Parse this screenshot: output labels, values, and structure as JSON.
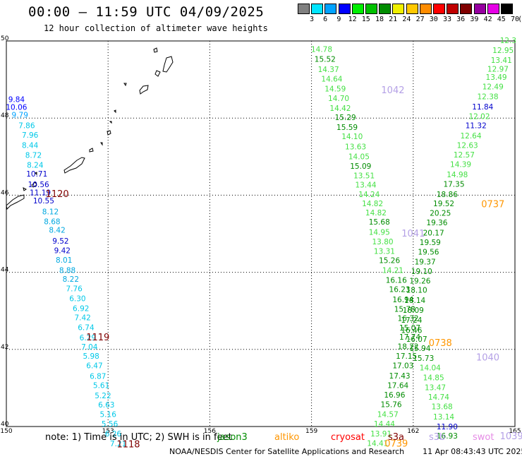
{
  "header": {
    "title": "00:00 – 11:59 UTC 04/09/2025",
    "subtitle": "12 hour collection of altimeter wave heights"
  },
  "color_scale": {
    "unit": "(ft)",
    "bins": [
      {
        "label": "3",
        "color": "#808080"
      },
      {
        "label": "6",
        "color": "#00e5ff"
      },
      {
        "label": "9",
        "color": "#00a2ff"
      },
      {
        "label": "12",
        "color": "#0000ff"
      },
      {
        "label": "15",
        "color": "#00ee00"
      },
      {
        "label": "18",
        "color": "#00c000"
      },
      {
        "label": "21",
        "color": "#008c00"
      },
      {
        "label": "24",
        "color": "#f0f000"
      },
      {
        "label": "27",
        "color": "#ffc800"
      },
      {
        "label": "30",
        "color": "#ff8c00"
      },
      {
        "label": "33",
        "color": "#ff0000"
      },
      {
        "label": "36",
        "color": "#c00000"
      },
      {
        "label": "39",
        "color": "#800000"
      },
      {
        "label": "42",
        "color": "#9600a0"
      },
      {
        "label": "45",
        "color": "#e600e6"
      },
      {
        "label": "70",
        "color": "#000000"
      }
    ]
  },
  "map": {
    "lon_ticks": [
      "150",
      "153",
      "156",
      "159",
      "162",
      "165"
    ],
    "lat_ticks": [
      "50",
      "48",
      "46",
      "44",
      "42",
      "40"
    ]
  },
  "tracks": [
    {
      "color": "#0000ff",
      "points": [
        {
          "lon": 150.3,
          "lat": 48.49,
          "v": "9.84"
        },
        {
          "lon": 150.3,
          "lat": 48.29,
          "v": "10.06"
        }
      ]
    },
    {
      "color": "#00a2ff",
      "points": [
        {
          "lon": 150.4,
          "lat": 48.09,
          "v": "9.79"
        }
      ]
    },
    {
      "color": "#00c8e8",
      "points": [
        {
          "lon": 150.6,
          "lat": 47.81,
          "v": "7.86"
        },
        {
          "lon": 150.7,
          "lat": 47.56,
          "v": "7.96"
        },
        {
          "lon": 150.7,
          "lat": 47.3,
          "v": "8.44"
        },
        {
          "lon": 150.8,
          "lat": 47.04,
          "v": "8.72"
        },
        {
          "lon": 150.85,
          "lat": 46.79,
          "v": "8.24"
        }
      ]
    },
    {
      "color": "#0000cc",
      "points": [
        {
          "lon": 150.9,
          "lat": 46.56,
          "v": "10.71"
        },
        {
          "lon": 150.95,
          "lat": 46.28,
          "v": "10.56"
        },
        {
          "lon": 151.0,
          "lat": 46.07,
          "v": "11.19"
        },
        {
          "lon": 151.1,
          "lat": 45.86,
          "v": "10.55"
        }
      ]
    },
    {
      "color": "#00a8e0",
      "points": [
        {
          "lon": 151.3,
          "lat": 45.58,
          "v": "8.12"
        },
        {
          "lon": 151.35,
          "lat": 45.32,
          "v": "8.68"
        },
        {
          "lon": 151.5,
          "lat": 45.1,
          "v": "8.42"
        }
      ]
    },
    {
      "color": "#0000cc",
      "points": [
        {
          "lon": 151.6,
          "lat": 44.82,
          "v": "9.52"
        },
        {
          "lon": 151.65,
          "lat": 44.57,
          "v": "9.42"
        }
      ]
    },
    {
      "color": "#00a8e0",
      "points": [
        {
          "lon": 151.7,
          "lat": 44.32,
          "v": "8.01"
        },
        {
          "lon": 151.8,
          "lat": 44.06,
          "v": "8.88"
        },
        {
          "lon": 151.9,
          "lat": 43.83,
          "v": "8.22"
        }
      ]
    },
    {
      "color": "#00c8e8",
      "points": [
        {
          "lon": 152.0,
          "lat": 43.58,
          "v": "7.76"
        },
        {
          "lon": 152.1,
          "lat": 43.32,
          "v": "6.30"
        },
        {
          "lon": 152.2,
          "lat": 43.07,
          "v": "6.92"
        },
        {
          "lon": 152.25,
          "lat": 42.83,
          "v": "7.42"
        },
        {
          "lon": 152.35,
          "lat": 42.57,
          "v": "6.74"
        },
        {
          "lon": 152.4,
          "lat": 42.31,
          "v": "6.29"
        },
        {
          "lon": 152.45,
          "lat": 42.07,
          "v": "7.04"
        },
        {
          "lon": 152.5,
          "lat": 41.83,
          "v": "5.98"
        },
        {
          "lon": 152.6,
          "lat": 41.58,
          "v": "6.47"
        },
        {
          "lon": 152.7,
          "lat": 41.31,
          "v": "6.87"
        },
        {
          "lon": 152.8,
          "lat": 41.07,
          "v": "5.61"
        },
        {
          "lon": 152.85,
          "lat": 40.81,
          "v": "5.22"
        },
        {
          "lon": 152.95,
          "lat": 40.57,
          "v": "6.63"
        },
        {
          "lon": 153.0,
          "lat": 40.32,
          "v": "5.16"
        },
        {
          "lon": 153.05,
          "lat": 40.07,
          "v": "5.56"
        },
        {
          "lon": 153.15,
          "lat": 39.82,
          "v": "6.26"
        },
        {
          "lon": 153.3,
          "lat": 39.56,
          "v": "7.21"
        }
      ]
    },
    {
      "color": "#44e044",
      "points": [
        {
          "lon": 159.3,
          "lat": 49.79,
          "v": "14.78"
        }
      ]
    },
    {
      "color": "#008c00",
      "points": [
        {
          "lon": 159.4,
          "lat": 49.53,
          "v": "15.52"
        }
      ]
    },
    {
      "color": "#44e044",
      "points": [
        {
          "lon": 159.5,
          "lat": 49.27,
          "v": "14.37"
        },
        {
          "lon": 159.6,
          "lat": 49.02,
          "v": "14.64"
        },
        {
          "lon": 159.7,
          "lat": 48.76,
          "v": "14.59"
        },
        {
          "lon": 159.8,
          "lat": 48.52,
          "v": "14.70"
        },
        {
          "lon": 159.85,
          "lat": 48.26,
          "v": "14.42"
        }
      ]
    },
    {
      "color": "#008c00",
      "points": [
        {
          "lon": 160.0,
          "lat": 48.02,
          "v": "15.29"
        },
        {
          "lon": 160.05,
          "lat": 47.77,
          "v": "15.59"
        }
      ]
    },
    {
      "color": "#44e044",
      "points": [
        {
          "lon": 160.2,
          "lat": 47.53,
          "v": "14.10"
        },
        {
          "lon": 160.3,
          "lat": 47.26,
          "v": "13.63"
        },
        {
          "lon": 160.4,
          "lat": 47.01,
          "v": "14.05"
        }
      ]
    },
    {
      "color": "#008c00",
      "points": [
        {
          "lon": 160.45,
          "lat": 46.76,
          "v": "15.09"
        }
      ]
    },
    {
      "color": "#44e044",
      "points": [
        {
          "lon": 160.55,
          "lat": 46.51,
          "v": "13.51"
        },
        {
          "lon": 160.6,
          "lat": 46.27,
          "v": "13.44"
        },
        {
          "lon": 160.7,
          "lat": 46.03,
          "v": "14.24"
        },
        {
          "lon": 160.8,
          "lat": 45.79,
          "v": "14.82"
        },
        {
          "lon": 160.9,
          "lat": 45.55,
          "v": "14.82"
        }
      ]
    },
    {
      "color": "#008c00",
      "points": [
        {
          "lon": 161.0,
          "lat": 45.31,
          "v": "15.68"
        }
      ]
    },
    {
      "color": "#44e044",
      "points": [
        {
          "lon": 161.0,
          "lat": 45.05,
          "v": "14.95"
        },
        {
          "lon": 161.1,
          "lat": 44.8,
          "v": "13.80"
        },
        {
          "lon": 161.15,
          "lat": 44.55,
          "v": "13.31"
        }
      ]
    },
    {
      "color": "#008c00",
      "points": [
        {
          "lon": 161.3,
          "lat": 44.31,
          "v": "15.26"
        }
      ]
    },
    {
      "color": "#44e044",
      "points": [
        {
          "lon": 161.4,
          "lat": 44.06,
          "v": "14.21"
        }
      ]
    },
    {
      "color": "#008c00",
      "points": [
        {
          "lon": 161.5,
          "lat": 43.8,
          "v": "16.16"
        },
        {
          "lon": 161.6,
          "lat": 43.56,
          "v": "16.23"
        },
        {
          "lon": 161.7,
          "lat": 43.3,
          "v": "16.94"
        },
        {
          "lon": 161.75,
          "lat": 43.05,
          "v": "15.78"
        },
        {
          "lon": 161.85,
          "lat": 42.81,
          "v": "16.32"
        },
        {
          "lon": 161.9,
          "lat": 42.56,
          "v": "15.07"
        },
        {
          "lon": 161.9,
          "lat": 42.33,
          "v": "17.74"
        },
        {
          "lon": 161.85,
          "lat": 42.08,
          "v": "18.22"
        },
        {
          "lon": 161.8,
          "lat": 41.83,
          "v": "17.15"
        },
        {
          "lon": 161.7,
          "lat": 41.58,
          "v": "17.03"
        },
        {
          "lon": 161.6,
          "lat": 41.32,
          "v": "17.43"
        },
        {
          "lon": 161.55,
          "lat": 41.07,
          "v": "17.64"
        },
        {
          "lon": 161.45,
          "lat": 40.82,
          "v": "16.96"
        },
        {
          "lon": 161.35,
          "lat": 40.58,
          "v": "15.76"
        }
      ]
    },
    {
      "color": "#44e044",
      "points": [
        {
          "lon": 161.25,
          "lat": 40.32,
          "v": "14.57"
        },
        {
          "lon": 161.15,
          "lat": 40.07,
          "v": "14.44"
        },
        {
          "lon": 161.05,
          "lat": 39.82,
          "v": "13.91"
        },
        {
          "lon": 160.95,
          "lat": 39.57,
          "v": "14.41"
        }
      ]
    },
    {
      "color": "#44e044",
      "points": [
        {
          "lon": 164.8,
          "lat": 50.02,
          "v": "12.3"
        },
        {
          "lon": 164.65,
          "lat": 49.76,
          "v": "12.95"
        },
        {
          "lon": 164.6,
          "lat": 49.51,
          "v": "13.41"
        },
        {
          "lon": 164.5,
          "lat": 49.28,
          "v": "12.97"
        },
        {
          "lon": 164.45,
          "lat": 49.07,
          "v": "13.49"
        },
        {
          "lon": 164.35,
          "lat": 48.82,
          "v": "12.49"
        },
        {
          "lon": 164.2,
          "lat": 48.56,
          "v": "12.38"
        }
      ]
    },
    {
      "color": "#0000cc",
      "points": [
        {
          "lon": 164.05,
          "lat": 48.3,
          "v": "11.84"
        }
      ]
    },
    {
      "color": "#44e044",
      "points": [
        {
          "lon": 163.95,
          "lat": 48.05,
          "v": "12.02"
        }
      ]
    },
    {
      "color": "#0000cc",
      "points": [
        {
          "lon": 163.85,
          "lat": 47.81,
          "v": "11.32"
        }
      ]
    },
    {
      "color": "#44e044",
      "points": [
        {
          "lon": 163.7,
          "lat": 47.55,
          "v": "12.64"
        },
        {
          "lon": 163.6,
          "lat": 47.3,
          "v": "12.63"
        },
        {
          "lon": 163.5,
          "lat": 47.05,
          "v": "12.57"
        },
        {
          "lon": 163.4,
          "lat": 46.8,
          "v": "14.39"
        },
        {
          "lon": 163.3,
          "lat": 46.54,
          "v": "14.98"
        }
      ]
    },
    {
      "color": "#008c00",
      "points": [
        {
          "lon": 163.2,
          "lat": 46.29,
          "v": "17.35"
        },
        {
          "lon": 163.0,
          "lat": 46.03,
          "v": "18.86"
        },
        {
          "lon": 162.9,
          "lat": 45.79,
          "v": "19.52"
        },
        {
          "lon": 162.8,
          "lat": 45.54,
          "v": "20.25"
        },
        {
          "lon": 162.7,
          "lat": 45.29,
          "v": "19.36"
        },
        {
          "lon": 162.6,
          "lat": 45.03,
          "v": "20.17"
        },
        {
          "lon": 162.5,
          "lat": 44.78,
          "v": "19.59"
        },
        {
          "lon": 162.45,
          "lat": 44.53,
          "v": "19.56"
        },
        {
          "lon": 162.35,
          "lat": 44.28,
          "v": "19.37"
        },
        {
          "lon": 162.25,
          "lat": 44.03,
          "v": "19.10"
        },
        {
          "lon": 162.2,
          "lat": 43.78,
          "v": "19.26"
        },
        {
          "lon": 162.1,
          "lat": 43.54,
          "v": "18.10"
        },
        {
          "lon": 162.05,
          "lat": 43.28,
          "v": "18.14"
        },
        {
          "lon": 162.0,
          "lat": 43.02,
          "v": "18.09"
        },
        {
          "lon": 161.95,
          "lat": 42.77,
          "v": "17.24"
        },
        {
          "lon": 161.95,
          "lat": 42.5,
          "v": "16.46"
        },
        {
          "lon": 162.1,
          "lat": 42.27,
          "v": "16.07"
        },
        {
          "lon": 162.2,
          "lat": 42.03,
          "v": "15.94"
        },
        {
          "lon": 162.3,
          "lat": 41.78,
          "v": "15.73"
        }
      ]
    },
    {
      "color": "#44e044",
      "points": [
        {
          "lon": 162.5,
          "lat": 41.53,
          "v": "14.04"
        },
        {
          "lon": 162.6,
          "lat": 41.27,
          "v": "14.85"
        },
        {
          "lon": 162.65,
          "lat": 41.02,
          "v": "13.47"
        },
        {
          "lon": 162.75,
          "lat": 40.77,
          "v": "14.74"
        },
        {
          "lon": 162.85,
          "lat": 40.52,
          "v": "13.68"
        },
        {
          "lon": 162.9,
          "lat": 40.26,
          "v": "13.14"
        }
      ]
    },
    {
      "color": "#0000cc",
      "points": [
        {
          "lon": 163.0,
          "lat": 40.0,
          "v": "11.90"
        }
      ]
    },
    {
      "color": "#008c00",
      "points": [
        {
          "lon": 163.0,
          "lat": 39.76,
          "v": "16.93"
        }
      ]
    }
  ],
  "pass_labels": [
    {
      "text": "1120",
      "lon": 151.5,
      "lat": 46.04,
      "color": "#800000"
    },
    {
      "text": "1119",
      "lon": 152.7,
      "lat": 42.33,
      "color": "#800000"
    },
    {
      "text": "1118",
      "lon": 153.6,
      "lat": 39.55,
      "color": "#800000"
    },
    {
      "text": "1042",
      "lon": 161.4,
      "lat": 48.74,
      "color": "#b4a0e6"
    },
    {
      "text": "1041",
      "lon": 162.0,
      "lat": 45.02,
      "color": "#b4a0e6"
    },
    {
      "text": "1040",
      "lon": 164.2,
      "lat": 41.8,
      "color": "#b4a0e6"
    },
    {
      "text": "1039",
      "lon": 164.9,
      "lat": 39.76,
      "color": "#b4a0e6"
    },
    {
      "text": "0737",
      "lon": 164.35,
      "lat": 45.78,
      "color": "#ff9600"
    },
    {
      "text": "0738",
      "lon": 162.8,
      "lat": 42.18,
      "color": "#ff9600"
    },
    {
      "text": "0739",
      "lon": 161.5,
      "lat": 39.57,
      "color": "#ff9600"
    }
  ],
  "note": {
    "prefix": "note: 1) Time is in UTC; 2) SWH is in feet",
    "sat_jason3": {
      "text": "jason3",
      "color": "#008c00"
    },
    "sat_altika": {
      "text": "altiko",
      "color": "#ff9600"
    },
    "sat_cryosat": {
      "text": "cryosat",
      "color": "#ff0000"
    },
    "sat_s3a": {
      "text": "s3a",
      "color": "#800000"
    },
    "sat_s3b": {
      "text": "s3b",
      "color": "#b4a0e6"
    },
    "sat_swot": {
      "text": "swot",
      "color": "#e68ce6"
    }
  },
  "footer": {
    "org": "NOAA/NESDIS Center for Satellite Applications and Research",
    "stamp": "11 Apr 08:43:43 UTC 2025"
  }
}
